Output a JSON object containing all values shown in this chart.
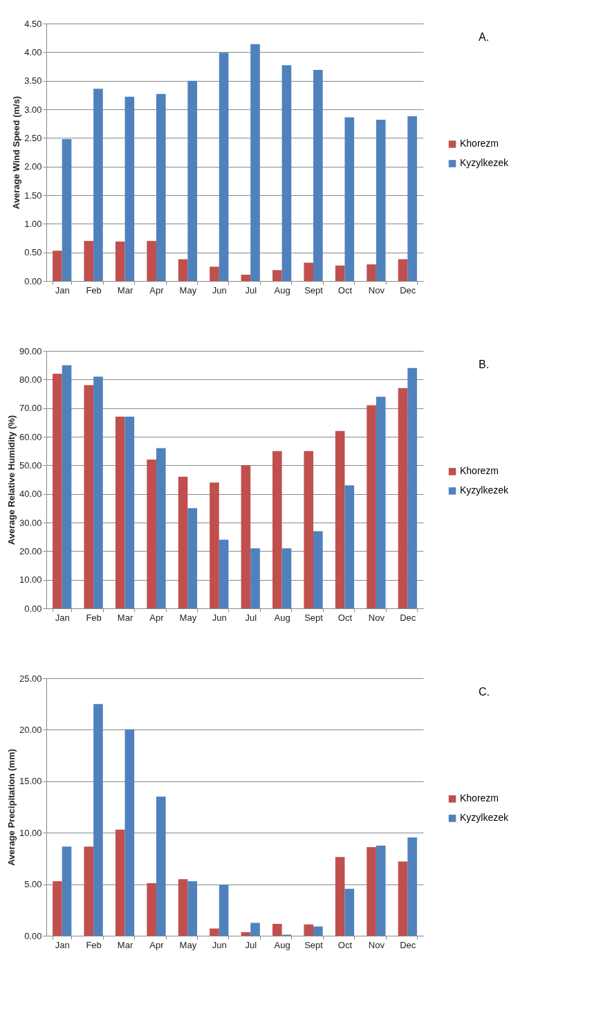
{
  "chart_data": [
    {
      "type": "bar",
      "ylabel": "Average Wind Speed (m/s)",
      "annotations": [
        "A."
      ],
      "categories": [
        "Jan",
        "Feb",
        "Mar",
        "Apr",
        "May",
        "Jun",
        "Jul",
        "Aug",
        "Sept",
        "Oct",
        "Nov",
        "Dec"
      ],
      "series": [
        {
          "name": "Khorezm",
          "color": "#c0504d",
          "values": [
            0.53,
            0.7,
            0.69,
            0.7,
            0.38,
            0.25,
            0.11,
            0.19,
            0.32,
            0.27,
            0.29,
            0.38
          ]
        },
        {
          "name": "Kyzylkezek",
          "color": "#4f81bd",
          "values": [
            2.48,
            3.36,
            3.22,
            3.27,
            3.5,
            3.99,
            4.14,
            3.77,
            3.69,
            2.86,
            2.82,
            2.88
          ]
        }
      ],
      "ylim": [
        0,
        4.5
      ],
      "yticks": [
        {
          "value": 0,
          "label": "0.00"
        },
        {
          "value": 0.5,
          "label": "0.50"
        },
        {
          "value": 1,
          "label": "1.00"
        },
        {
          "value": 1.5,
          "label": "1.50"
        },
        {
          "value": 2,
          "label": "2.00"
        },
        {
          "value": 2.5,
          "label": "2.50"
        },
        {
          "value": 3,
          "label": "3.00"
        },
        {
          "value": 3.5,
          "label": "3.50"
        },
        {
          "value": 4,
          "label": "4.00"
        },
        {
          "value": 4.5,
          "label": "4.50"
        }
      ],
      "grid": "y",
      "legend": "right"
    },
    {
      "type": "bar",
      "ylabel": "Average Relative Humidity (%)",
      "annotations": [
        "B."
      ],
      "categories": [
        "Jan",
        "Feb",
        "Mar",
        "Apr",
        "May",
        "Jun",
        "Jul",
        "Aug",
        "Sept",
        "Oct",
        "Nov",
        "Dec"
      ],
      "series": [
        {
          "name": "Khorezm",
          "color": "#c0504d",
          "values": [
            82,
            78,
            67,
            52,
            46,
            44,
            50,
            55,
            55,
            62,
            71,
            77
          ]
        },
        {
          "name": "Kyzylkezek",
          "color": "#4f81bd",
          "values": [
            85,
            81,
            67,
            56,
            35,
            24,
            21,
            21,
            27,
            43,
            74,
            84
          ]
        }
      ],
      "ylim": [
        0,
        90
      ],
      "yticks": [
        {
          "value": 0,
          "label": "0.00"
        },
        {
          "value": 10,
          "label": "10.00"
        },
        {
          "value": 20,
          "label": "20.00"
        },
        {
          "value": 30,
          "label": "30.00"
        },
        {
          "value": 40,
          "label": "40.00"
        },
        {
          "value": 50,
          "label": "50.00"
        },
        {
          "value": 60,
          "label": "60.00"
        },
        {
          "value": 70,
          "label": "70.00"
        },
        {
          "value": 80,
          "label": "80.00"
        },
        {
          "value": 90,
          "label": "90.00"
        }
      ],
      "grid": "y",
      "legend": "right"
    },
    {
      "type": "bar",
      "ylabel": "Average Precipitation (mm)",
      "annotations": [
        "C."
      ],
      "categories": [
        "Jan",
        "Feb",
        "Mar",
        "Apr",
        "May",
        "Jun",
        "Jul",
        "Aug",
        "Sept",
        "Oct",
        "Nov",
        "Dec"
      ],
      "series": [
        {
          "name": "Khorezm",
          "color": "#c0504d",
          "values": [
            5.3,
            8.65,
            10.3,
            5.1,
            5.5,
            0.7,
            0.35,
            1.15,
            1.1,
            7.65,
            8.6,
            7.2
          ]
        },
        {
          "name": "Kyzylkezek",
          "color": "#4f81bd",
          "values": [
            8.65,
            22.5,
            20.05,
            13.5,
            5.3,
            4.95,
            1.25,
            0.1,
            0.9,
            4.55,
            8.75,
            9.55
          ]
        }
      ],
      "ylim": [
        0,
        25
      ],
      "yticks": [
        {
          "value": 0,
          "label": "0.00"
        },
        {
          "value": 5,
          "label": "5.00"
        },
        {
          "value": 10,
          "label": "10.00"
        },
        {
          "value": 15,
          "label": "15.00"
        },
        {
          "value": 20,
          "label": "20.00"
        },
        {
          "value": 25,
          "label": "25.00"
        }
      ],
      "grid": "y",
      "legend": "right"
    }
  ]
}
